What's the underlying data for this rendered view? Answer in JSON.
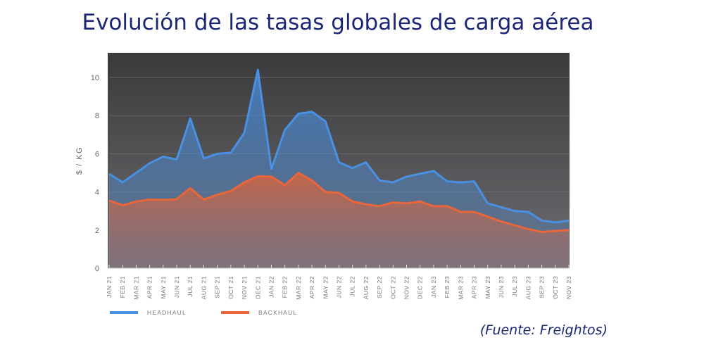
{
  "title": "Evolución de las tasas globales de carga aérea",
  "source": "(Fuente: Freightos)",
  "chart_data": {
    "type": "area",
    "title": "Evolución de las tasas globales de carga aérea",
    "ylabel": "$ / KG",
    "xlabel": "",
    "ylim": [
      0,
      11
    ],
    "yticks": [
      0,
      2,
      4,
      6,
      8,
      10
    ],
    "grid": true,
    "legend_position": "bottom-left",
    "categories": [
      "JAN 21",
      "FEB 21",
      "MAR 21",
      "APR 21",
      "MAY 21",
      "JUN 21",
      "JUL 21",
      "AUG 21",
      "SEP 21",
      "OCT 21",
      "NOV 21",
      "DEC 21",
      "JAN 22",
      "FEB 22",
      "MAR 22",
      "APR 22",
      "MAY 22",
      "JUN 22",
      "JUL 22",
      "AUG 22",
      "SEP 22",
      "OCT 22",
      "NOV 22",
      "DEC 22",
      "JAN 23",
      "FEB 23",
      "MAR 23",
      "APR 23",
      "MAY 23",
      "JUN 23",
      "JUL 23",
      "AUG 23",
      "SEP 23",
      "OCT 23",
      "NOV 23"
    ],
    "series": [
      {
        "name": "HEADHAUL",
        "color": "#4a90e2",
        "values": [
          4.95,
          4.5,
          5.0,
          5.5,
          5.85,
          5.7,
          7.85,
          5.75,
          6.0,
          6.05,
          7.1,
          10.4,
          5.2,
          7.25,
          8.1,
          8.2,
          7.7,
          5.55,
          5.25,
          5.55,
          4.6,
          4.5,
          4.8,
          4.95,
          5.1,
          4.55,
          4.5,
          4.55,
          3.4,
          3.2,
          3.0,
          2.95,
          2.5,
          2.4,
          2.5
        ]
      },
      {
        "name": "BACKHAUL",
        "color": "#e8663a",
        "values": [
          3.55,
          3.3,
          3.5,
          3.6,
          3.58,
          3.62,
          4.2,
          3.6,
          3.85,
          4.05,
          4.5,
          4.82,
          4.8,
          4.35,
          5.0,
          4.6,
          4.0,
          3.95,
          3.5,
          3.35,
          3.25,
          3.45,
          3.4,
          3.5,
          3.25,
          3.25,
          2.95,
          2.95,
          2.7,
          2.45,
          2.25,
          2.05,
          1.9,
          1.95,
          2.0
        ]
      }
    ]
  }
}
